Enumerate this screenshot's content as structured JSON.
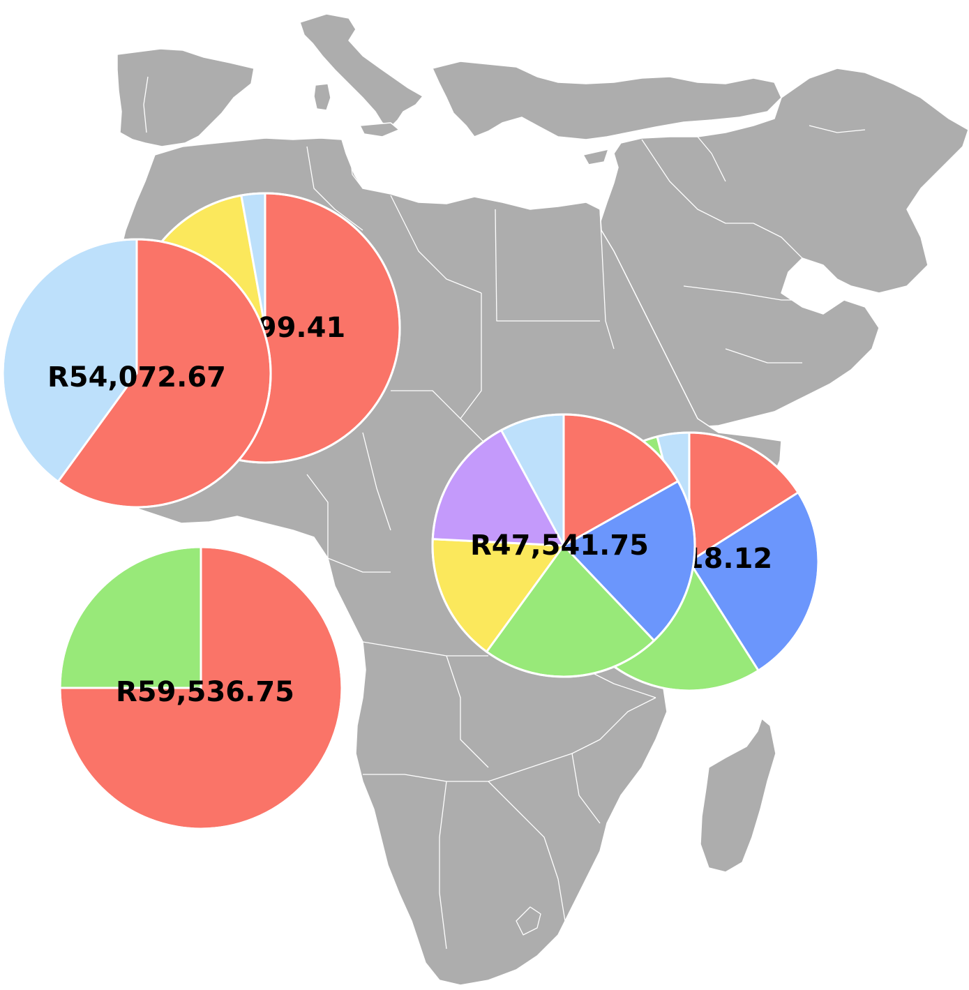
{
  "palette": {
    "land": "#adadad",
    "border": "#ffffff",
    "slice_colors": [
      "#fa7468",
      "#6b96fc",
      "#98e979",
      "#fbe85c",
      "#c49afb",
      "#bde0fb"
    ]
  },
  "chart_data": {
    "type": "pie",
    "title": "",
    "pies": [
      {
        "id": "north-africa-west",
        "label": "99.41",
        "series": [
          {
            "name": "",
            "color": "#fa7468",
            "value": 0.5
          },
          {
            "name": "",
            "color": "#fbe85c",
            "value": 0.083
          },
          {
            "name": "",
            "color": "#bde0fb",
            "value": 0.017
          }
        ]
      },
      {
        "id": "west-africa",
        "label": "R54,072.67",
        "series": [
          {
            "name": "",
            "color": "#fa7468",
            "value": 0.6
          },
          {
            "name": "",
            "color": "#bde0fb",
            "value": 0.4
          }
        ]
      },
      {
        "id": "southern-atlantic",
        "label": "R59,536.75",
        "series": [
          {
            "name": "",
            "color": "#fa7468",
            "value": 0.75
          },
          {
            "name": "",
            "color": "#98e979",
            "value": 0.25
          }
        ]
      },
      {
        "id": "horn-of-africa",
        "label": "18.12",
        "series": [
          {
            "name": "",
            "color": "#fa7468",
            "value": 0.16
          },
          {
            "name": "",
            "color": "#6b96fc",
            "value": 0.25
          },
          {
            "name": "",
            "color": "#98e979",
            "value": 0.55
          },
          {
            "name": "",
            "color": "#bde0fb",
            "value": 0.04
          }
        ]
      },
      {
        "id": "central-africa",
        "label": "R47,541.75",
        "series": [
          {
            "name": "",
            "color": "#fa7468",
            "value": 0.16
          },
          {
            "name": "",
            "color": "#6b96fc",
            "value": 0.2
          },
          {
            "name": "",
            "color": "#98e979",
            "value": 0.21
          },
          {
            "name": "",
            "color": "#fbe85c",
            "value": 0.15
          },
          {
            "name": "",
            "color": "#c49afb",
            "value": 0.155
          },
          {
            "name": "",
            "color": "#bde0fb",
            "value": 0.075
          }
        ]
      }
    ]
  }
}
